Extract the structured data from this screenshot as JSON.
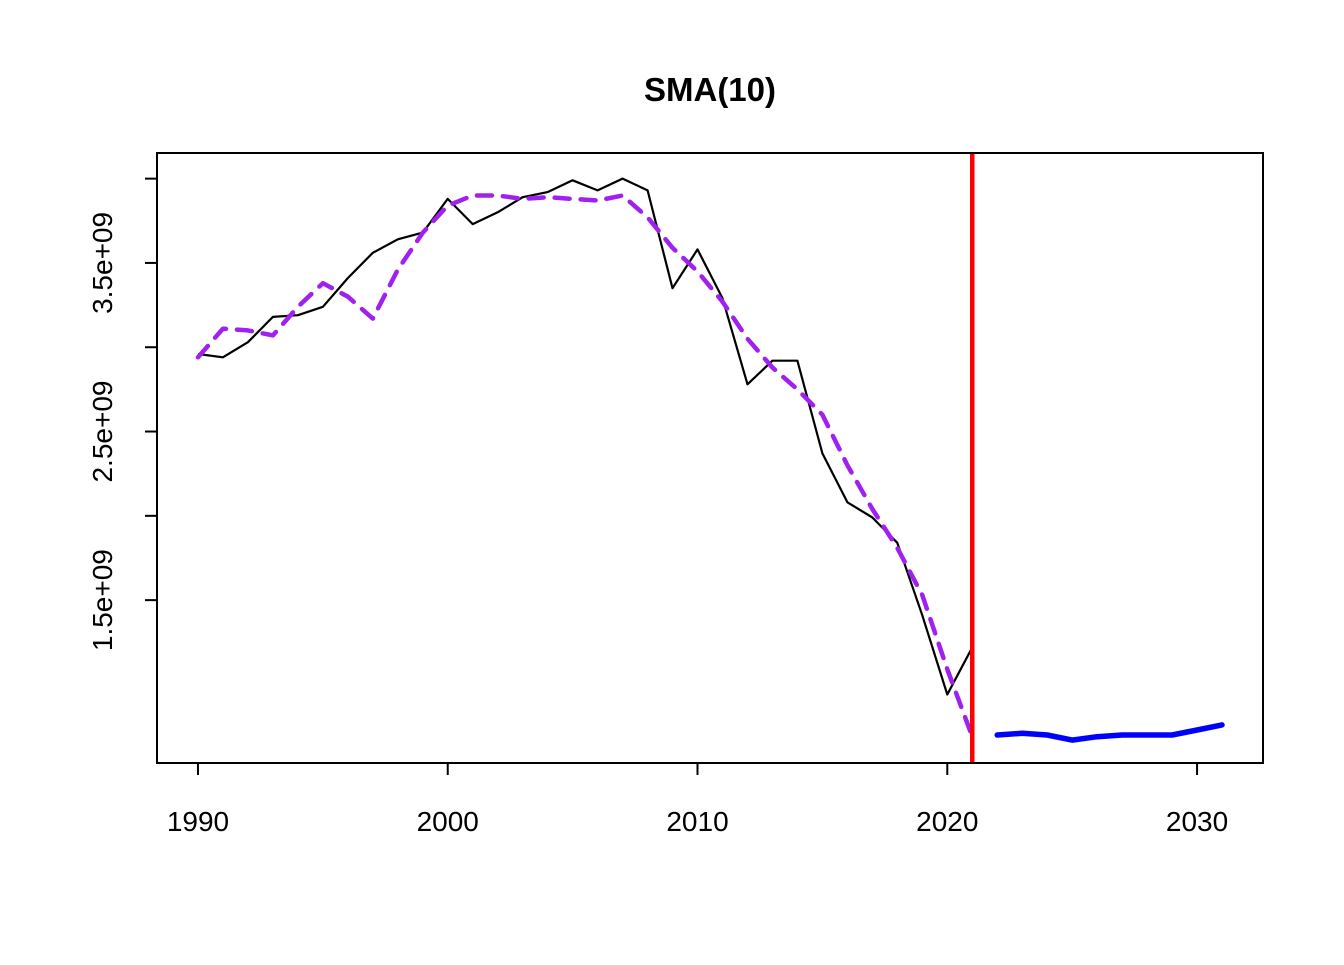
{
  "title": "SMA(10)",
  "colors": {
    "background": "#ffffff",
    "axis": "#000000",
    "actual": "#000000",
    "sma": "#a020f0",
    "forecast": "#0000ff",
    "vline": "#ff0000"
  },
  "axes": {
    "x": {
      "ticks": [
        {
          "value": 1990,
          "label": "1990"
        },
        {
          "value": 2000,
          "label": "2000"
        },
        {
          "value": 2010,
          "label": "2010"
        },
        {
          "value": 2020,
          "label": "2020"
        },
        {
          "value": 2030,
          "label": "2030"
        }
      ]
    },
    "y": {
      "ticks": [
        1500000000,
        2000000000,
        2500000000,
        3000000000,
        3500000000,
        4000000000
      ],
      "labels": [
        {
          "value": 1500000000,
          "text": "1.5e+09"
        },
        {
          "value": 2500000000,
          "text": "2.5e+09"
        },
        {
          "value": 3500000000,
          "text": "3.5e+09"
        }
      ]
    }
  },
  "chart_data": {
    "type": "line",
    "title": "SMA(10)",
    "xlabel": "",
    "ylabel": "",
    "xlim": [
      1988.36,
      2032.64
    ],
    "ylim": [
      534000000,
      4152000000
    ],
    "grid": false,
    "legend": "none",
    "series": [
      {
        "name": "actual",
        "color": "#000000",
        "style": "solid",
        "width": 2.2,
        "x": [
          1990,
          1991,
          1992,
          1993,
          1994,
          1995,
          1996,
          1997,
          1998,
          1999,
          2000,
          2001,
          2002,
          2003,
          2004,
          2005,
          2006,
          2007,
          2008,
          2009,
          2010,
          2011,
          2012,
          2013,
          2014,
          2015,
          2016,
          2017,
          2018,
          2019,
          2020,
          2021
        ],
        "y": [
          2960000000,
          2940000000,
          3030000000,
          3180000000,
          3190000000,
          3240000000,
          3410000000,
          3560000000,
          3640000000,
          3680000000,
          3880000000,
          3730000000,
          3800000000,
          3890000000,
          3920000000,
          3990000000,
          3930000000,
          4000000000,
          3930000000,
          3350000000,
          3580000000,
          3290000000,
          2780000000,
          2920000000,
          2920000000,
          2370000000,
          2080000000,
          1990000000,
          1840000000,
          1410000000,
          940000000,
          1220000000
        ]
      },
      {
        "name": "sma-fitted",
        "color": "#a020f0",
        "style": "dashed",
        "width": 4.5,
        "x": [
          1990,
          1991,
          1992,
          1993,
          1994,
          1995,
          1996,
          1997,
          1998,
          1999,
          2000,
          2001,
          2002,
          2003,
          2004,
          2005,
          2006,
          2007,
          2008,
          2009,
          2010,
          2011,
          2012,
          2013,
          2014,
          2015,
          2016,
          2017,
          2018,
          2019,
          2020,
          2021
        ],
        "y": [
          2940000000,
          3110000000,
          3100000000,
          3070000000,
          3240000000,
          3380000000,
          3300000000,
          3170000000,
          3460000000,
          3680000000,
          3840000000,
          3900000000,
          3900000000,
          3880000000,
          3890000000,
          3880000000,
          3870000000,
          3900000000,
          3770000000,
          3590000000,
          3450000000,
          3270000000,
          3050000000,
          2880000000,
          2750000000,
          2600000000,
          2300000000,
          2040000000,
          1810000000,
          1530000000,
          1090000000,
          690000000
        ]
      },
      {
        "name": "forecast",
        "color": "#0000ff",
        "style": "solid",
        "width": 5.5,
        "x": [
          2022,
          2023,
          2024,
          2025,
          2026,
          2027,
          2028,
          2029,
          2030,
          2031
        ],
        "y": [
          700000000,
          710000000,
          700000000,
          670000000,
          690000000,
          700000000,
          700000000,
          700000000,
          730000000,
          760000000
        ]
      }
    ],
    "vline": {
      "x": 2021,
      "color": "#ff0000",
      "width": 4.5
    }
  }
}
